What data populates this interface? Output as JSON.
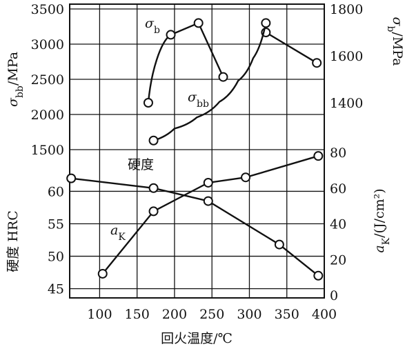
{
  "chart_data": {
    "type": "line",
    "xlabel": "回火温度/℃",
    "x_ticks": [
      100,
      150,
      200,
      250,
      300,
      350,
      400
    ],
    "x_range": [
      60,
      400
    ],
    "grid": true,
    "axes": {
      "left_top": {
        "label_sym": "σ",
        "label_sub": "bb",
        "label_unit": "/MPa",
        "ticks": [
          1500,
          2000,
          2500,
          3000,
          3500
        ],
        "range": [
          1500,
          3500
        ]
      },
      "right_top": {
        "label_sym": "σ",
        "label_sub": "b",
        "label_unit": "/MPa",
        "ticks": [
          1400,
          1600,
          1800
        ],
        "range": [
          1200,
          1800
        ]
      },
      "left_bottom": {
        "label_text": "硬度 HRC",
        "ticks": [
          45,
          50,
          55,
          60
        ],
        "range": [
          44,
          66
        ]
      },
      "right_bottom": {
        "label_sym": "a",
        "label_sub": "K",
        "label_unit": "/(J/cm²)",
        "ticks": [
          0,
          20,
          40,
          60,
          80
        ],
        "range": [
          0,
          80
        ]
      }
    },
    "series": [
      {
        "name": "σb",
        "sym": "σ",
        "sub": "b",
        "axis": "right_top",
        "x": [
          165,
          195,
          232,
          265
        ],
        "y": [
          1400,
          1690,
          1740,
          1510
        ],
        "markers": true
      },
      {
        "name": "σb",
        "sym": "σ",
        "sub": "b",
        "axis": "right_top",
        "x": [
          322,
          390
        ],
        "y": [
          1700,
          1570
        ],
        "markers": true
      },
      {
        "name": "σbb",
        "sym": "σ",
        "sub": "bb",
        "axis": "left_top",
        "x": [
          172,
          200,
          230,
          260,
          285,
          305,
          322
        ],
        "y": [
          1630,
          1800,
          1960,
          2180,
          2480,
          2800,
          3300
        ],
        "marker_x": [
          172,
          322
        ],
        "marker_y": [
          1630,
          3300
        ]
      },
      {
        "name": "硬度",
        "axis": "left_bottom",
        "x": [
          62,
          172,
          245,
          340,
          392
        ],
        "y": [
          62.0,
          60.5,
          58.5,
          51.8,
          47.0
        ],
        "markers": true
      },
      {
        "name": "aK",
        "sym": "a",
        "sub": "K",
        "axis": "right_bottom",
        "x": [
          104,
          172,
          245,
          295,
          392
        ],
        "y": [
          12,
          47,
          63,
          66,
          78
        ],
        "markers": true
      }
    ]
  }
}
